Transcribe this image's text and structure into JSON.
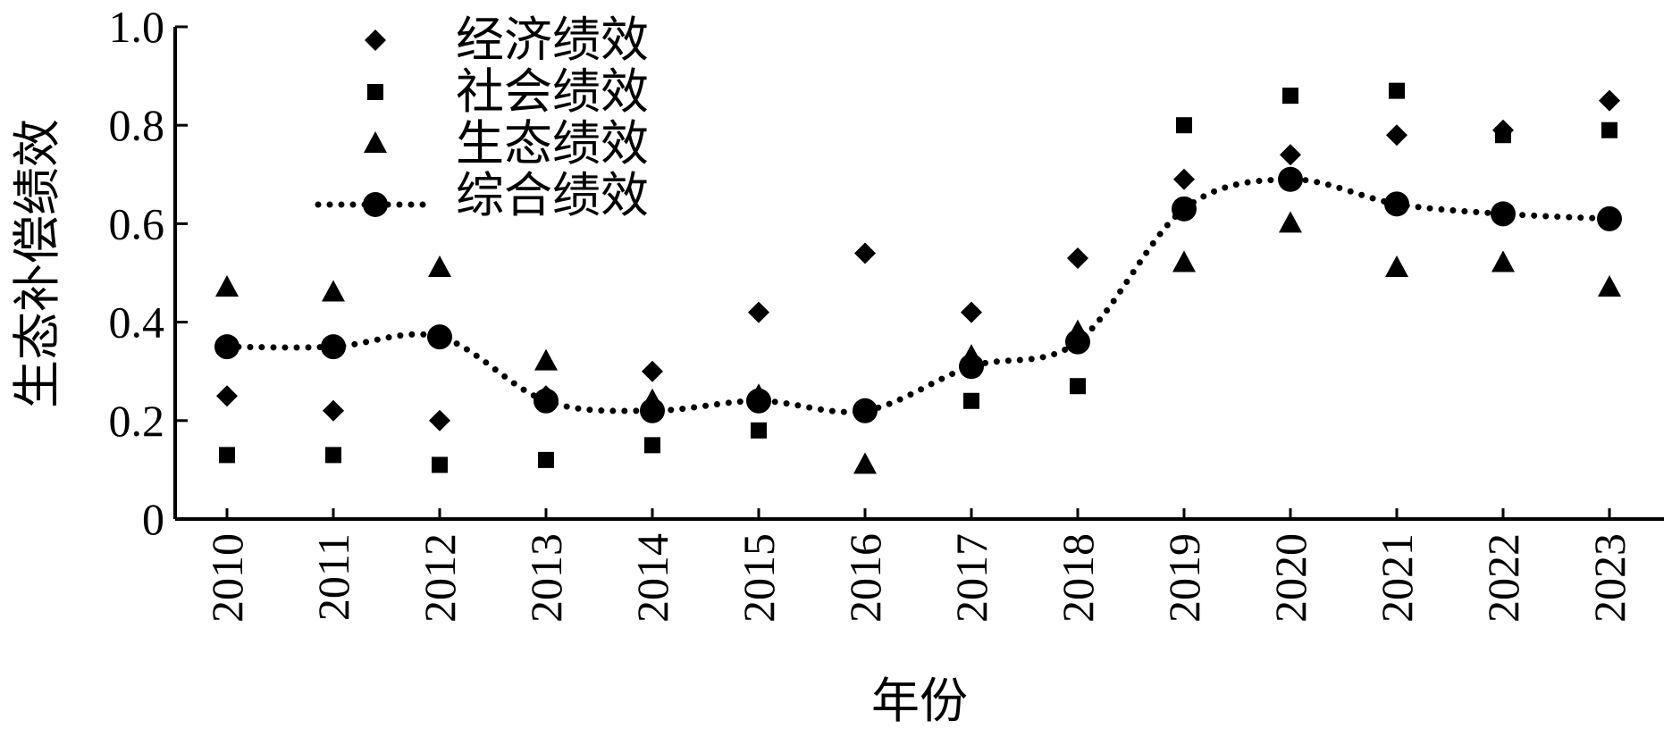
{
  "chart_data": {
    "type": "scatter",
    "xlabel": "年份",
    "ylabel": "生态补偿绩效",
    "ylim": [
      0,
      1.0
    ],
    "yticks": [
      {
        "value": 0,
        "label": "0"
      },
      {
        "value": 0.2,
        "label": "0.2"
      },
      {
        "value": 0.4,
        "label": "0.4"
      },
      {
        "value": 0.6,
        "label": "0.6"
      },
      {
        "value": 0.8,
        "label": "0.8"
      },
      {
        "value": 1.0,
        "label": "1.0"
      }
    ],
    "categories": [
      "2010",
      "2011",
      "2012",
      "2013",
      "2014",
      "2015",
      "2016",
      "2017",
      "2018",
      "2019",
      "2020",
      "2021",
      "2022",
      "2023"
    ],
    "legend_position": "top-left",
    "series": [
      {
        "name": "经济绩效",
        "marker": "diamond",
        "line": "none",
        "values": [
          0.25,
          0.22,
          0.2,
          0.25,
          0.3,
          0.42,
          0.54,
          0.42,
          0.53,
          0.69,
          0.74,
          0.78,
          0.79,
          0.85
        ]
      },
      {
        "name": "社会绩效",
        "marker": "square",
        "line": "none",
        "values": [
          0.13,
          0.13,
          0.11,
          0.12,
          0.15,
          0.18,
          0.22,
          0.24,
          0.27,
          0.8,
          0.86,
          0.87,
          0.78,
          0.79
        ]
      },
      {
        "name": "生态绩效",
        "marker": "triangle",
        "line": "none",
        "values": [
          0.47,
          0.46,
          0.51,
          0.32,
          0.24,
          0.25,
          0.11,
          0.33,
          0.38,
          0.52,
          0.6,
          0.51,
          0.52,
          0.47
        ]
      },
      {
        "name": "综合绩效",
        "marker": "circle",
        "line": "dotted",
        "values": [
          0.35,
          0.35,
          0.37,
          0.24,
          0.22,
          0.24,
          0.22,
          0.31,
          0.36,
          0.63,
          0.69,
          0.64,
          0.62,
          0.61
        ]
      }
    ],
    "colors": {
      "ink": "#000000",
      "background": "#ffffff"
    }
  }
}
